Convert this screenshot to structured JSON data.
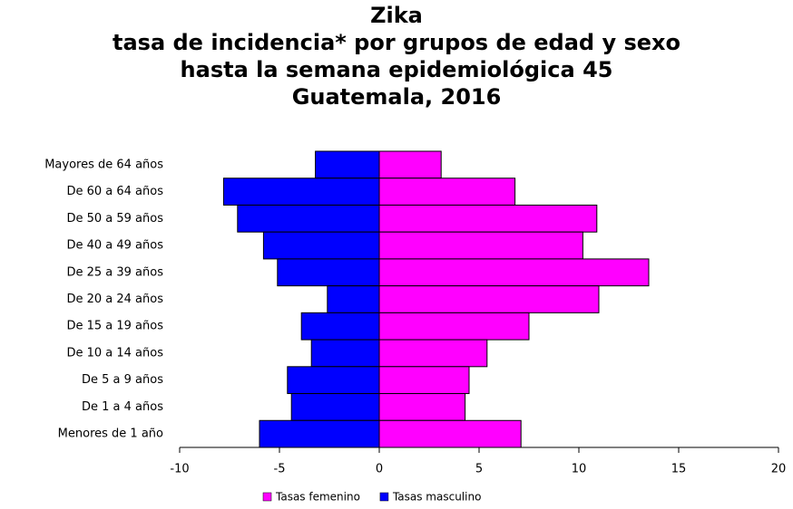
{
  "chart_data": {
    "type": "bar",
    "orientation": "horizontal",
    "title": [
      "Zika",
      "tasa de incidencia* por grupos de edad y sexo",
      "hasta la semana epidemiológica 45",
      "Guatemala, 2016"
    ],
    "categories": [
      "Mayores de 64 años",
      "De 60 a 64 años",
      "De 50 a 59 años",
      "De 40 a 49 años",
      "De 25 a 39 años",
      "De 20 a 24 años",
      "De 15 a 19 años",
      "De 10 a 14 años",
      "De 5 a 9 años",
      "De 1 a 4 años",
      "Menores de 1 año"
    ],
    "series": [
      {
        "name": "Tasas femenino",
        "color": "#ff00ff",
        "values": [
          3.1,
          6.8,
          10.9,
          10.2,
          13.5,
          11.0,
          7.5,
          5.4,
          4.5,
          4.3,
          7.1
        ]
      },
      {
        "name": "Tasas masculino",
        "color": "#0000ff",
        "values": [
          -3.2,
          -7.8,
          -7.1,
          -5.8,
          -5.1,
          -2.6,
          -3.9,
          -3.4,
          -4.6,
          -4.4,
          -6.0
        ]
      }
    ],
    "xlim": [
      -10,
      20
    ],
    "xticks": [
      -10,
      -5,
      0,
      5,
      10,
      15,
      20
    ],
    "legend": "bottom"
  }
}
